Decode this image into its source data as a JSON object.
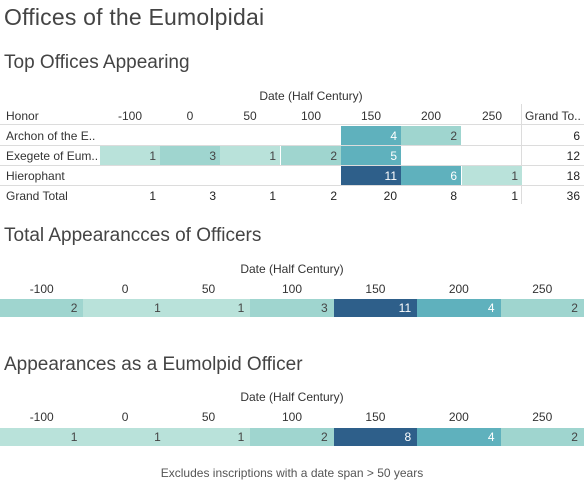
{
  "title": "Offices of the Eumolpidai",
  "footnote": "Excludes inscriptions with a date span > 50 years",
  "axis_title": "Date (Half Century)",
  "colors": {
    "scale": [
      "#cce9e3",
      "#b9e2da",
      "#9fd5cf",
      "#5fb1bd",
      "#2e5f8a"
    ],
    "text_light": "#ffffff",
    "text_dark": "#333333"
  },
  "chart_data": [
    {
      "type": "table",
      "title": "Top Offices Appearing",
      "row_header": "Honor",
      "x_title": "Date (Half Century)",
      "columns": [
        "-100",
        "0",
        "50",
        "100",
        "150",
        "200",
        "250"
      ],
      "grand_total_label": "Grand To..",
      "rows": [
        {
          "label": "Archon of the E..",
          "values": [
            null,
            null,
            null,
            null,
            4,
            2,
            null
          ],
          "total": 6
        },
        {
          "label": "Exegete of Eum..",
          "values": [
            1,
            3,
            1,
            2,
            5,
            null,
            null
          ],
          "total": 12
        },
        {
          "label": "Hierophant",
          "values": [
            null,
            null,
            null,
            null,
            11,
            6,
            1
          ],
          "total": 18
        }
      ],
      "grand_total_row": {
        "label": "Grand Total",
        "values": [
          1,
          3,
          1,
          2,
          20,
          8,
          1
        ],
        "total": 36
      }
    },
    {
      "type": "heatmap",
      "title": "Total Appearancces of Officers",
      "x_title": "Date (Half Century)",
      "x": [
        "-100",
        "0",
        "50",
        "100",
        "150",
        "200",
        "250"
      ],
      "values": [
        2,
        1,
        1,
        3,
        11,
        4,
        2
      ]
    },
    {
      "type": "heatmap",
      "title": "Appearances as a Eumolpid Officer",
      "x_title": "Date (Half Century)",
      "x": [
        "-100",
        "0",
        "50",
        "100",
        "150",
        "200",
        "250"
      ],
      "values": [
        1,
        1,
        1,
        2,
        8,
        4,
        2
      ]
    }
  ]
}
